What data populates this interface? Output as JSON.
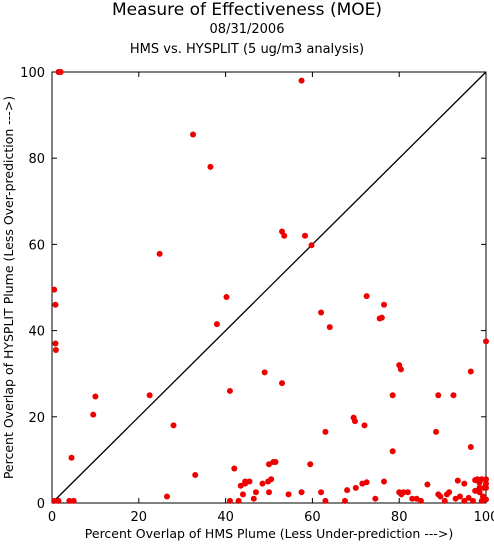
{
  "chart_data": {
    "type": "scatter",
    "title": "Measure of Effectiveness (MOE)",
    "subtitle": "08/31/2006",
    "subtitle2": "HMS vs. HYSPLIT  (5 ug/m3 analysis)",
    "xlabel": "Percent Overlap of HMS Plume (Less Under-prediction --->)",
    "ylabel": "Percent Overlap of HYSPLIT Plume (Less Over-prediction --->)",
    "xlim": [
      0,
      100
    ],
    "ylim": [
      0,
      100
    ],
    "x_ticks": [
      "0",
      "20",
      "40",
      "60",
      "80",
      "100"
    ],
    "y_ticks": [
      "0",
      "20",
      "40",
      "60",
      "80",
      "100"
    ],
    "grid": false,
    "reference_line": "y = x",
    "marker_color": "#ee0000",
    "points": [
      [
        1.5,
        100
      ],
      [
        2,
        100
      ],
      [
        57.5,
        98
      ],
      [
        32.5,
        85.5
      ],
      [
        36.5,
        78
      ],
      [
        24.8,
        57.8
      ],
      [
        53,
        63
      ],
      [
        53.5,
        62
      ],
      [
        58.3,
        62
      ],
      [
        59.8,
        59.8
      ],
      [
        0.5,
        49.5
      ],
      [
        0.8,
        46
      ],
      [
        0.8,
        37
      ],
      [
        0.9,
        35.5
      ],
      [
        40.2,
        47.8
      ],
      [
        38,
        41.5
      ],
      [
        62,
        44.2
      ],
      [
        64,
        40.8
      ],
      [
        72.5,
        48
      ],
      [
        75.5,
        42.8
      ],
      [
        76,
        43
      ],
      [
        76.5,
        46
      ],
      [
        10,
        24.7
      ],
      [
        9.5,
        20.5
      ],
      [
        22.5,
        25
      ],
      [
        41,
        26
      ],
      [
        49,
        30.3
      ],
      [
        53,
        27.8
      ],
      [
        28,
        18
      ],
      [
        4.5,
        10.5
      ],
      [
        80,
        32
      ],
      [
        80.4,
        31
      ],
      [
        100,
        37.5
      ],
      [
        96.5,
        30.5
      ],
      [
        89,
        25
      ],
      [
        92.5,
        25
      ],
      [
        69.5,
        19.8
      ],
      [
        69.8,
        19
      ],
      [
        72,
        18
      ],
      [
        78.5,
        25
      ],
      [
        63,
        16.5
      ],
      [
        88.5,
        16.5
      ],
      [
        96.5,
        13
      ],
      [
        78.5,
        12
      ],
      [
        59.5,
        9
      ],
      [
        98,
        5.5
      ],
      [
        99,
        5.5
      ],
      [
        100,
        5.5
      ],
      [
        97.5,
        5.3
      ],
      [
        98.5,
        4.7
      ],
      [
        100,
        4.5
      ],
      [
        98.5,
        3.5
      ],
      [
        99.5,
        3.5
      ],
      [
        100,
        3.5
      ],
      [
        97.5,
        2.8
      ],
      [
        98.5,
        2.5
      ],
      [
        99.3,
        1.5
      ],
      [
        100,
        0.8
      ],
      [
        99,
        0.5
      ],
      [
        97,
        0.5
      ],
      [
        93,
        1
      ],
      [
        91.5,
        2.5
      ],
      [
        90.5,
        0.5
      ],
      [
        89,
        2
      ],
      [
        89.5,
        1.5
      ],
      [
        86.5,
        4.3
      ],
      [
        85,
        0.5
      ],
      [
        84,
        1
      ],
      [
        81,
        2.5
      ],
      [
        80,
        2.5
      ],
      [
        80.5,
        2
      ],
      [
        82,
        2.5
      ],
      [
        83,
        1
      ],
      [
        76.5,
        5
      ],
      [
        74.5,
        1
      ],
      [
        72.5,
        4.8
      ],
      [
        71.5,
        4.5
      ],
      [
        70,
        3.5
      ],
      [
        68,
        3
      ],
      [
        67.5,
        0.5
      ],
      [
        62,
        2.5
      ],
      [
        63,
        0.5
      ],
      [
        57.5,
        2.5
      ],
      [
        54.5,
        2
      ],
      [
        51.5,
        9.5
      ],
      [
        50,
        9
      ],
      [
        51,
        9.5
      ],
      [
        49.8,
        5
      ],
      [
        50.5,
        5.5
      ],
      [
        48.5,
        4.5
      ],
      [
        50,
        2.5
      ],
      [
        47,
        2.5
      ],
      [
        46.5,
        1
      ],
      [
        45.5,
        5
      ],
      [
        44.5,
        4.5
      ],
      [
        43.5,
        4
      ],
      [
        44,
        2
      ],
      [
        44.5,
        5
      ],
      [
        43,
        0.5
      ],
      [
        42,
        8
      ],
      [
        41,
        0.5
      ],
      [
        33,
        6.5
      ],
      [
        26.5,
        1.5
      ],
      [
        5,
        0.5
      ],
      [
        4,
        0.5
      ],
      [
        0.5,
        0.5
      ],
      [
        1.5,
        0.5
      ],
      [
        91,
        2
      ],
      [
        94,
        1.5
      ],
      [
        95,
        4.5
      ],
      [
        93.5,
        5.2
      ],
      [
        95,
        0.5
      ],
      [
        96,
        1.2
      ]
    ]
  }
}
